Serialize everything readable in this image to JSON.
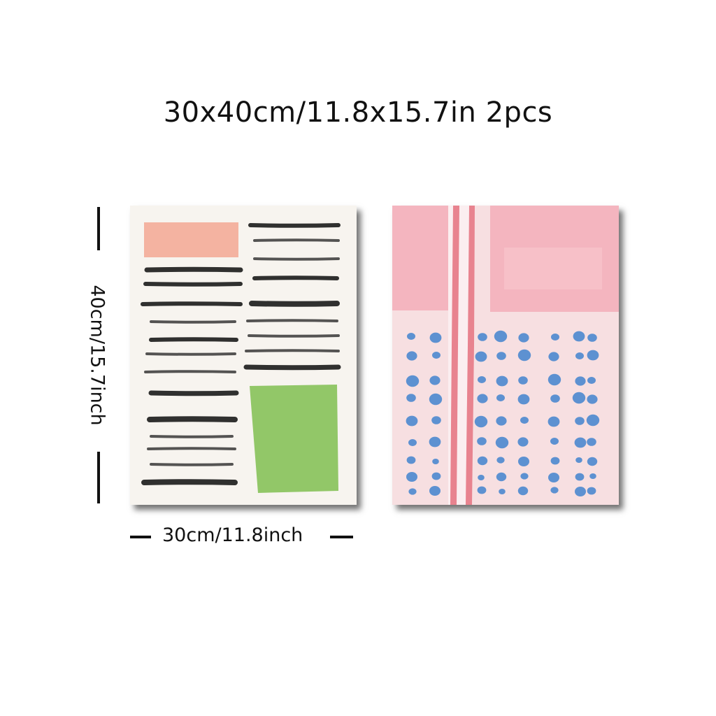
{
  "title": "30x40cm/11.8x15.7in 2pcs",
  "dimensions": {
    "height_label": "40cm/15.7inch",
    "width_label": "30cm/11.8inch"
  },
  "colors": {
    "paper": "#f7f4ef",
    "ink_black": "#1e1e1e",
    "salmon_block": "#f3ad9a",
    "green_block": "#8cc460",
    "pink_wash": "#f4b5bf",
    "pale_pink": "#f7dfe1",
    "pink_stripe": "#e8838f",
    "dot_blue": "#4b88cf"
  },
  "posters": [
    {
      "name": "black-brush-strokes-with-salmon-and-green-blocks"
    },
    {
      "name": "pink-wash-with-blue-dots"
    }
  ]
}
